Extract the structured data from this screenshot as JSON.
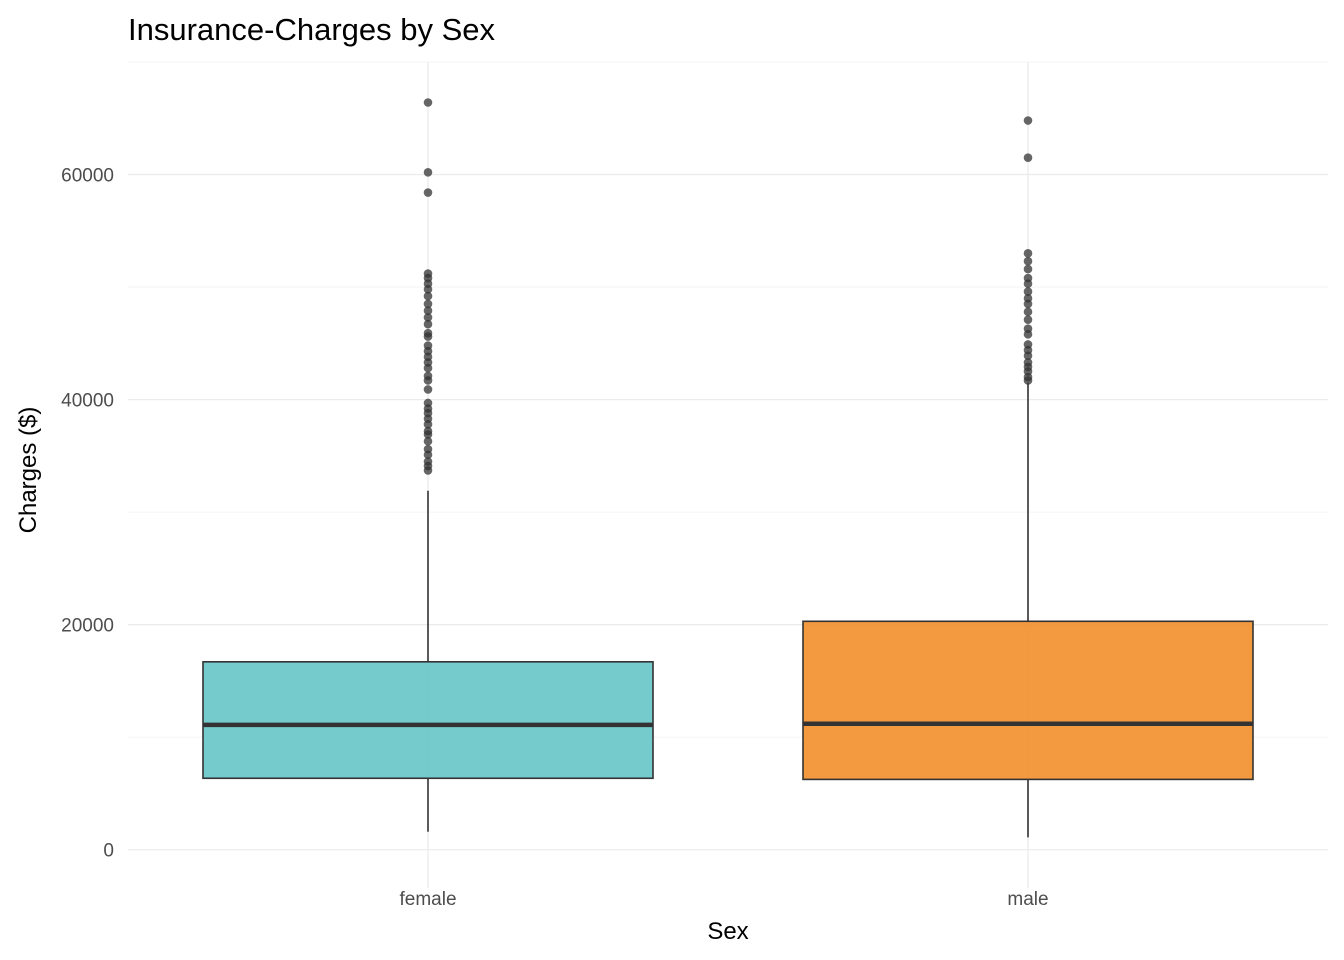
{
  "chart_data": {
    "type": "boxplot",
    "title": "Insurance-Charges by Sex",
    "xlabel": "Sex",
    "ylabel": "Charges ($)",
    "ylim": [
      -3400,
      70000
    ],
    "y_ticks": [
      0,
      20000,
      40000,
      60000
    ],
    "y_tick_labels": [
      "0",
      "20000",
      "40000",
      "60000"
    ],
    "y_minor_ticks": [
      10000,
      30000,
      50000,
      70000
    ],
    "grid": true,
    "legend": "none",
    "categories": [
      "female",
      "male"
    ],
    "boxes": [
      {
        "category": "female",
        "color": "#66c5c5",
        "whisker_low": 1600,
        "q1": 6350,
        "median": 11100,
        "q3": 16700,
        "whisker_high": 31900,
        "outliers": [
          66400,
          60200,
          58400,
          51200,
          50800,
          50300,
          49800,
          49200,
          48500,
          47900,
          47300,
          46700,
          45900,
          45600,
          44800,
          44300,
          43800,
          43300,
          42800,
          42100,
          41700,
          40900,
          39700,
          39200,
          38800,
          38300,
          37800,
          37200,
          36900,
          36300,
          35600,
          35100,
          34500,
          34100,
          33700
        ]
      },
      {
        "category": "male",
        "color": "#f28e2b",
        "whisker_low": 1100,
        "q1": 6250,
        "median": 11200,
        "q3": 20300,
        "whisker_high": 41500,
        "outliers": [
          64800,
          61500,
          53000,
          52300,
          51600,
          50800,
          50300,
          49600,
          49000,
          48500,
          47800,
          47100,
          46300,
          45800,
          44900,
          44400,
          43900,
          43300,
          42900,
          42500,
          42000,
          41700
        ]
      }
    ]
  }
}
